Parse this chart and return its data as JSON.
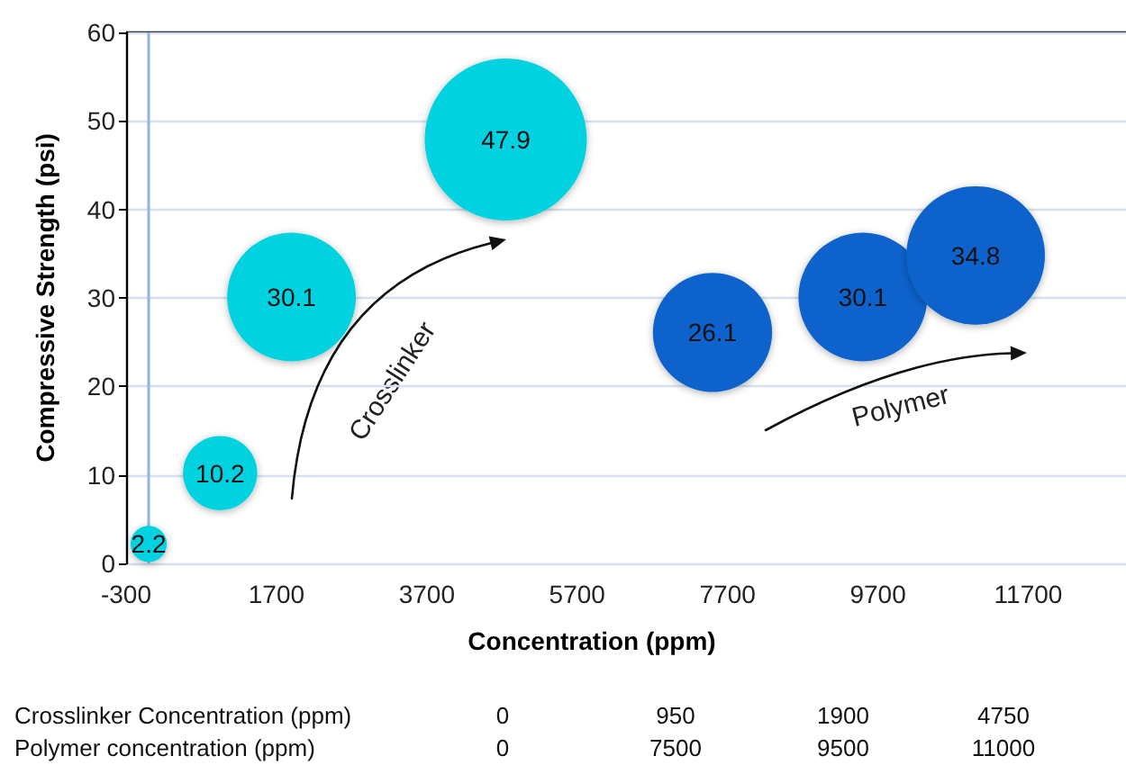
{
  "chart_data": {
    "type": "bubble",
    "xlabel": "Concentration (ppm)",
    "ylabel": "Compressive Strength (psi)",
    "series": [
      {
        "name": "Crosslinker",
        "color": "#00d2df",
        "x": [
          0,
          950,
          1900,
          4750
        ],
        "values": [
          2.2,
          10.2,
          30.1,
          47.9
        ],
        "sizes": [
          0.05,
          0.21,
          0.63,
          1
        ]
      },
      {
        "name": "Polymer",
        "color": "#0862cc",
        "x": [
          7500,
          9500,
          11000
        ],
        "values": [
          26.1,
          30.1,
          34.8
        ],
        "sizes": [
          0.54,
          0.63,
          0.73
        ]
      }
    ],
    "xlim": [
      -300,
      13000
    ],
    "xticks": [
      -300,
      1700,
      3700,
      5700,
      7700,
      9700,
      11700
    ],
    "ylim": [
      0,
      60
    ],
    "yticks": [
      0,
      10,
      20,
      30,
      40,
      50,
      60
    ],
    "grid": "y",
    "data_labels": true,
    "ref_lines": [
      {
        "axis": "x",
        "value": 0,
        "color": "#8fb4e3"
      }
    ],
    "annotations": [
      "Crosslinker Concentration (ppm)",
      "0",
      "950",
      "1900",
      "4750",
      "Polymer concentration (ppm)",
      "0",
      "7500",
      "9500",
      "11000"
    ]
  }
}
